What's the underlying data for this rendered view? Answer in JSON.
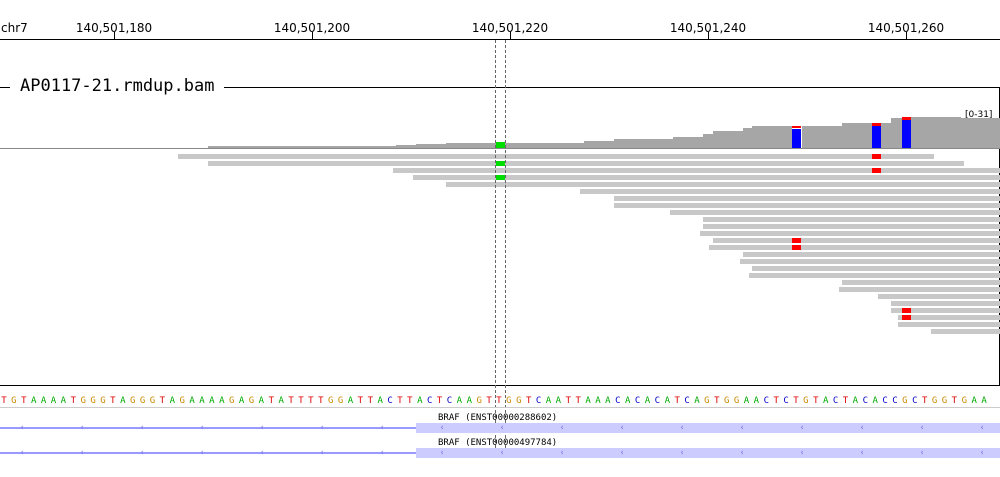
{
  "ruler": {
    "chrom": "chr7",
    "ticks": [
      "140,501,180",
      "140,501,200",
      "140,501,220",
      "140,501,240",
      "140,501,260"
    ]
  },
  "track": {
    "name": "AP0117-21.rmdup.bam",
    "range_label": "[0-31]"
  },
  "colors": {
    "coverage": "#a6a6a6",
    "read": "#c8c8c8",
    "mismatch_T": "#ff0000",
    "mismatch_A": "#00dd00",
    "allele_blue": "#0000ff",
    "base_A": "#00aa00",
    "base_C": "#0000cc",
    "base_G": "#cc8800",
    "base_T": "#dd0000",
    "gene_line": "#9999ff",
    "gene_exon": "#ccccff"
  },
  "sequence": "TGTAAAATGGGTAGGGTAGAAAAGAGATATTTTGGATTACTTACTCAAGTTGGTCAATTAAACACACATCAGTGGAACTCTGTACTACACCGCTGGTGAA",
  "genes": [
    {
      "label": "BRAF (ENST00000288602)"
    },
    {
      "label": "BRAF (ENST00000497784)"
    }
  ],
  "icons": {
    "strand": "minus-strand-arrow-icon"
  }
}
